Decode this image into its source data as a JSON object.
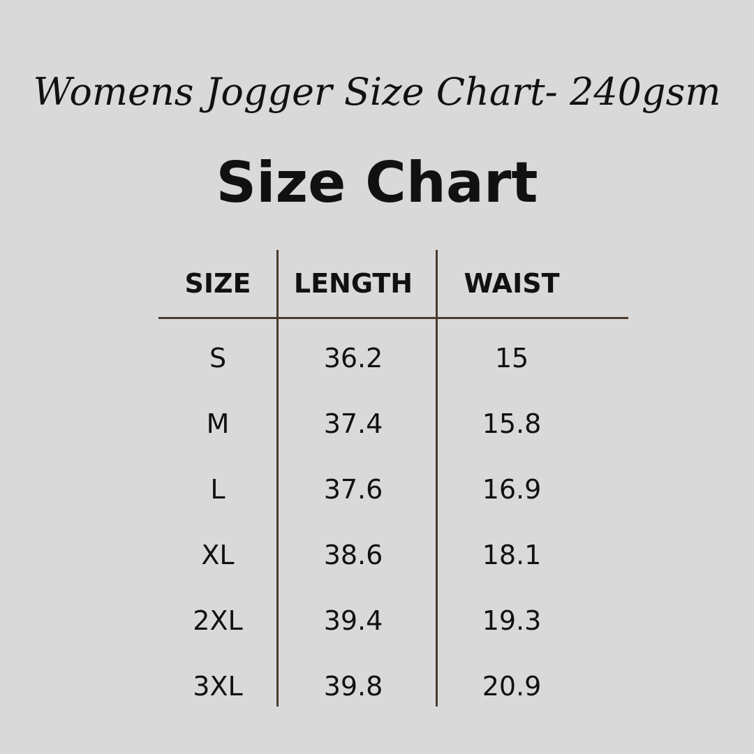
{
  "header": {
    "subtitle": "Womens Jogger Size Chart- 240gsm",
    "title": "Size Chart"
  },
  "table": {
    "columns": [
      "SIZE",
      "LENGTH",
      "WAIST"
    ],
    "rows": [
      [
        "S",
        "36.2",
        "15"
      ],
      [
        "M",
        "37.4",
        "15.8"
      ],
      [
        "L",
        "37.6",
        "16.9"
      ],
      [
        "XL",
        "38.6",
        "18.1"
      ],
      [
        "2XL",
        "39.4",
        "19.3"
      ],
      [
        "3XL",
        "39.8",
        "20.9"
      ]
    ]
  }
}
